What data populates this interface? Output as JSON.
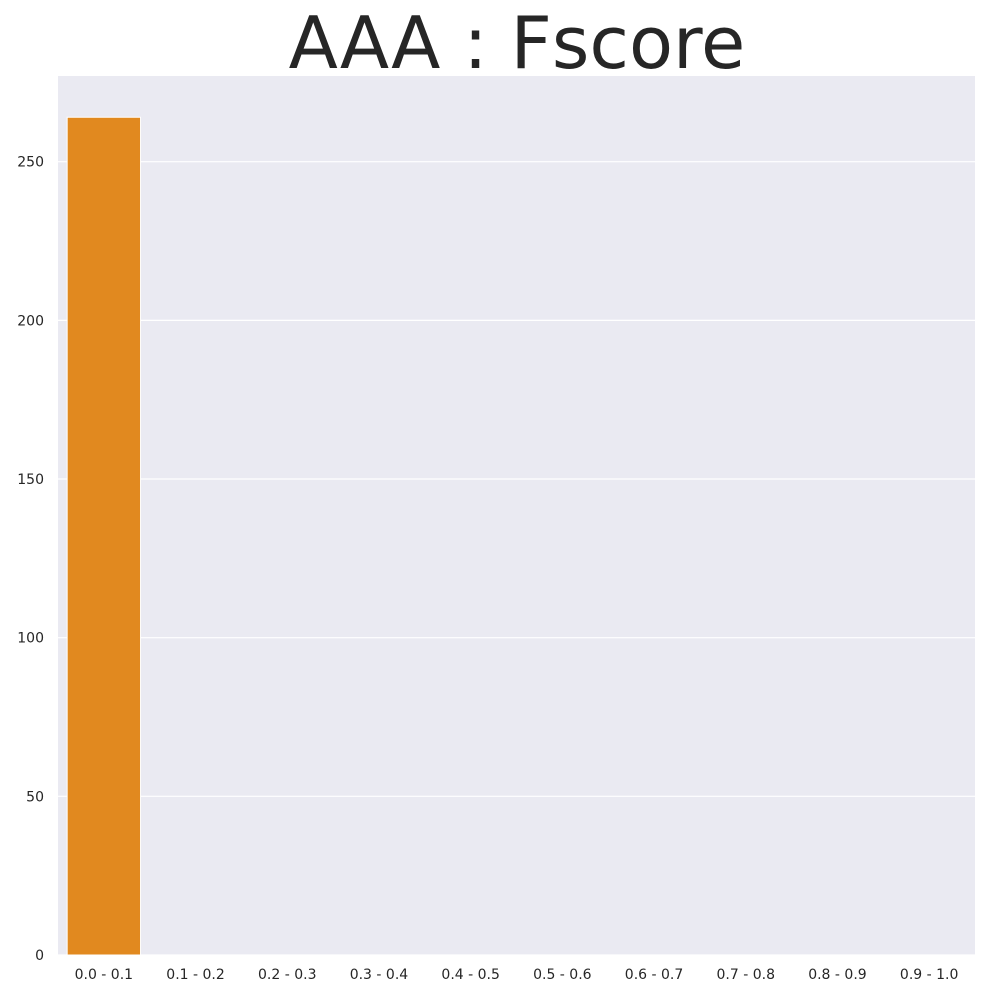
{
  "chart_data": {
    "type": "bar",
    "title": "AAA : Fscore",
    "xlabel": "",
    "ylabel": "",
    "categories": [
      "0.0 - 0.1",
      "0.1 - 0.2",
      "0.2 - 0.3",
      "0.3 - 0.4",
      "0.4 - 0.5",
      "0.5 - 0.6",
      "0.6 - 0.7",
      "0.7 - 0.8",
      "0.8 - 0.9",
      "0.9 - 1.0"
    ],
    "values": [
      264,
      0,
      0,
      0,
      0,
      0,
      0,
      0,
      0,
      0
    ],
    "ylim": [
      0,
      277
    ],
    "yticks": [
      0,
      50,
      100,
      150,
      200,
      250
    ],
    "grid": true,
    "legend": "none",
    "colors": {
      "bar": "#E1891F",
      "plot_background": "#EAEAF2",
      "grid": "#FFFFFF",
      "text": "#262626"
    }
  }
}
